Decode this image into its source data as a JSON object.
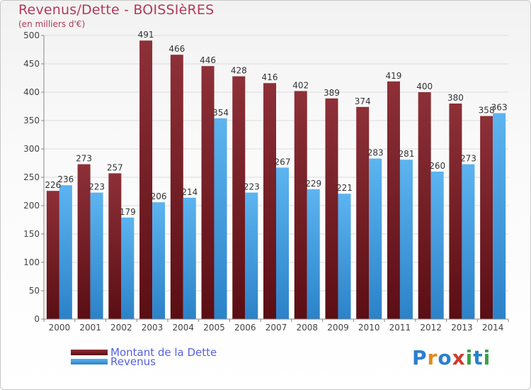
{
  "chart_data": {
    "type": "bar",
    "title": "Revenus/Dette - BOISSIèRES",
    "subtitle": "(en milliers d'€)",
    "categories": [
      "2000",
      "2001",
      "2002",
      "2003",
      "2004",
      "2005",
      "2006",
      "2007",
      "2008",
      "2009",
      "2010",
      "2011",
      "2012",
      "2013",
      "2014"
    ],
    "series": [
      {
        "name": "Montant de la Dette",
        "color": "#7a1f28",
        "values": [
          226,
          273,
          257,
          491,
          466,
          446,
          428,
          416,
          402,
          389,
          374,
          419,
          400,
          380,
          358
        ]
      },
      {
        "name": "Revenus",
        "color": "#4ea6e6",
        "values": [
          236,
          223,
          179,
          206,
          214,
          354,
          223,
          267,
          229,
          221,
          283,
          281,
          260,
          273,
          363
        ]
      }
    ],
    "ylim": [
      0,
      500
    ],
    "yticks": [
      0,
      50,
      100,
      150,
      200,
      250,
      300,
      350,
      400,
      450,
      500
    ],
    "grid": true,
    "legend": "bottom-left"
  },
  "logo": {
    "text": "Proxiti",
    "letters": [
      "P",
      "r",
      "o",
      "x",
      "i",
      "t",
      "i"
    ],
    "colors": [
      "#2a7fd0",
      "#e08a1c",
      "#2a7fd0",
      "#d03a2a",
      "#3aa048",
      "#2a7fd0",
      "#3aa048"
    ]
  }
}
